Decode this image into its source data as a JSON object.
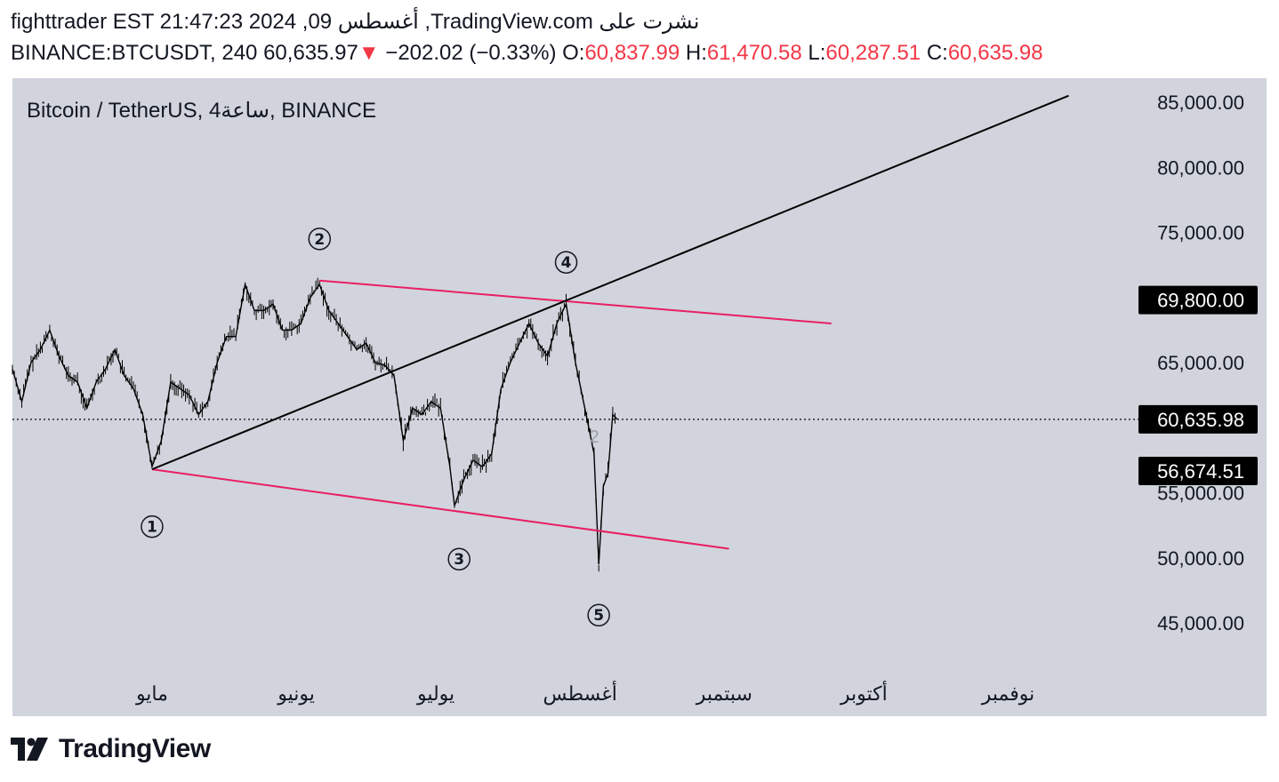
{
  "header": {
    "line1": "fighttrader EST 21:47:23 2024 ,09 أغسطس ,TradingView.com نشرت على",
    "symbol": "BINANCE:BTCUSDT, 240",
    "last_price": "60,635.97",
    "change_arrow": "▼",
    "change": "−202.02 (−0.33%)",
    "o_label": "O:",
    "o_value": "60,837.99",
    "h_label": "H:",
    "h_value": "61,470.58",
    "l_label": "L:",
    "l_value": "60,287.51",
    "c_label": "C:",
    "c_value": "60,635.98"
  },
  "legend": {
    "title": "Bitcoin / TetherUS, 4ساعة, BINANCE"
  },
  "brand": {
    "name": "TradingView"
  },
  "colors": {
    "chart_bg": "#d1d4dc",
    "candle": "#000000",
    "channel": "#e91e63",
    "trendline": "#000000",
    "tag_bg": "#000000",
    "tag_text": "#ffffff",
    "red": "#f23645"
  },
  "chart_data": {
    "type": "line",
    "title": "Bitcoin / TetherUS, 4ساعة, BINANCE",
    "y_scale": "linear",
    "ylim": [
      40000,
      88000
    ],
    "y_ticks": [
      {
        "value": 85000,
        "label": "85,000.00"
      },
      {
        "value": 80000,
        "label": "80,000.00"
      },
      {
        "value": 75000,
        "label": "75,000.00"
      },
      {
        "value": 65000,
        "label": "65,000.00"
      },
      {
        "value": 55000,
        "label": "55,000.00"
      },
      {
        "value": 50000,
        "label": "50,000.00"
      },
      {
        "value": 45000,
        "label": "45,000.00"
      }
    ],
    "x_range": [
      "2024-04-01",
      "2024-11-29"
    ],
    "x_ticks": [
      {
        "date": "2024-05-01",
        "label": "مايو"
      },
      {
        "date": "2024-06-01",
        "label": "يونيو"
      },
      {
        "date": "2024-07-01",
        "label": "يوليو"
      },
      {
        "date": "2024-08-01",
        "label": "أغسطس"
      },
      {
        "date": "2024-09-01",
        "label": "سبتمبر"
      },
      {
        "date": "2024-10-01",
        "label": "أكتوبر"
      },
      {
        "date": "2024-11-01",
        "label": "نوفمبر"
      }
    ],
    "price_series": [
      {
        "date": "2024-04-01",
        "value": 64500
      },
      {
        "date": "2024-04-03",
        "value": 62000
      },
      {
        "date": "2024-04-05",
        "value": 65000
      },
      {
        "date": "2024-04-07",
        "value": 66000
      },
      {
        "date": "2024-04-09",
        "value": 67500
      },
      {
        "date": "2024-04-11",
        "value": 65500
      },
      {
        "date": "2024-04-13",
        "value": 64000
      },
      {
        "date": "2024-04-15",
        "value": 63500
      },
      {
        "date": "2024-04-17",
        "value": 61500
      },
      {
        "date": "2024-04-19",
        "value": 63500
      },
      {
        "date": "2024-04-21",
        "value": 64500
      },
      {
        "date": "2024-04-23",
        "value": 66000
      },
      {
        "date": "2024-04-25",
        "value": 64000
      },
      {
        "date": "2024-04-27",
        "value": 63000
      },
      {
        "date": "2024-04-29",
        "value": 61000
      },
      {
        "date": "2024-05-01",
        "value": 57000
      },
      {
        "date": "2024-05-03",
        "value": 59000
      },
      {
        "date": "2024-05-05",
        "value": 63500
      },
      {
        "date": "2024-05-07",
        "value": 63000
      },
      {
        "date": "2024-05-09",
        "value": 62500
      },
      {
        "date": "2024-05-11",
        "value": 61000
      },
      {
        "date": "2024-05-13",
        "value": 62000
      },
      {
        "date": "2024-05-15",
        "value": 65000
      },
      {
        "date": "2024-05-17",
        "value": 67000
      },
      {
        "date": "2024-05-19",
        "value": 67000
      },
      {
        "date": "2024-05-21",
        "value": 71000
      },
      {
        "date": "2024-05-23",
        "value": 69000
      },
      {
        "date": "2024-05-25",
        "value": 69000
      },
      {
        "date": "2024-05-27",
        "value": 69500
      },
      {
        "date": "2024-05-29",
        "value": 67500
      },
      {
        "date": "2024-05-31",
        "value": 67500
      },
      {
        "date": "2024-06-02",
        "value": 68000
      },
      {
        "date": "2024-06-04",
        "value": 70000
      },
      {
        "date": "2024-06-06",
        "value": 71000
      },
      {
        "date": "2024-06-08",
        "value": 69000
      },
      {
        "date": "2024-06-10",
        "value": 68000
      },
      {
        "date": "2024-06-12",
        "value": 67000
      },
      {
        "date": "2024-06-14",
        "value": 66000
      },
      {
        "date": "2024-06-16",
        "value": 66500
      },
      {
        "date": "2024-06-18",
        "value": 65000
      },
      {
        "date": "2024-06-20",
        "value": 64800
      },
      {
        "date": "2024-06-22",
        "value": 64000
      },
      {
        "date": "2024-06-24",
        "value": 59000
      },
      {
        "date": "2024-06-26",
        "value": 61500
      },
      {
        "date": "2024-06-28",
        "value": 61000
      },
      {
        "date": "2024-06-30",
        "value": 62000
      },
      {
        "date": "2024-07-02",
        "value": 61500
      },
      {
        "date": "2024-07-04",
        "value": 57000
      },
      {
        "date": "2024-07-05",
        "value": 54000
      },
      {
        "date": "2024-07-07",
        "value": 56000
      },
      {
        "date": "2024-07-09",
        "value": 57500
      },
      {
        "date": "2024-07-11",
        "value": 57000
      },
      {
        "date": "2024-07-13",
        "value": 58000
      },
      {
        "date": "2024-07-15",
        "value": 63000
      },
      {
        "date": "2024-07-17",
        "value": 65000
      },
      {
        "date": "2024-07-19",
        "value": 66500
      },
      {
        "date": "2024-07-21",
        "value": 68000
      },
      {
        "date": "2024-07-23",
        "value": 66500
      },
      {
        "date": "2024-07-25",
        "value": 65500
      },
      {
        "date": "2024-07-27",
        "value": 68000
      },
      {
        "date": "2024-07-29",
        "value": 69500
      },
      {
        "date": "2024-07-31",
        "value": 65000
      },
      {
        "date": "2024-08-02",
        "value": 61500
      },
      {
        "date": "2024-08-04",
        "value": 58000
      },
      {
        "date": "2024-08-05",
        "value": 49500
      },
      {
        "date": "2024-08-06",
        "value": 55500
      },
      {
        "date": "2024-08-07",
        "value": 56500
      },
      {
        "date": "2024-08-08",
        "value": 61000
      },
      {
        "date": "2024-08-09",
        "value": 60636
      }
    ],
    "annotations": {
      "trendline": {
        "from": {
          "date": "2024-05-01",
          "value": 56800
        },
        "to": {
          "date": "2024-11-14",
          "value": 85500
        }
      },
      "channel_upper": {
        "from": {
          "date": "2024-06-06",
          "value": 71300
        },
        "to": {
          "date": "2024-09-24",
          "value": 68000
        }
      },
      "channel_lower": {
        "from": {
          "date": "2024-05-01",
          "value": 56800
        },
        "to": {
          "date": "2024-09-02",
          "value": 50700
        }
      },
      "wave_labels": [
        {
          "label": "①",
          "date": "2024-05-01",
          "value": 52400
        },
        {
          "label": "②",
          "date": "2024-06-06",
          "value": 74500
        },
        {
          "label": "③",
          "date": "2024-07-06",
          "value": 49900
        },
        {
          "label": "④",
          "date": "2024-07-29",
          "value": 72700
        },
        {
          "label": "⑤",
          "date": "2024-08-05",
          "value": 45600
        }
      ],
      "price_line": {
        "value": 60635.98,
        "style": "dotted"
      },
      "faint_mark": "2"
    },
    "price_tags": [
      {
        "value": 69800,
        "label": "69,800.00"
      },
      {
        "value": 60635.98,
        "label": "60,635.98"
      },
      {
        "value": 56674.51,
        "label": "56,674.51"
      }
    ]
  }
}
